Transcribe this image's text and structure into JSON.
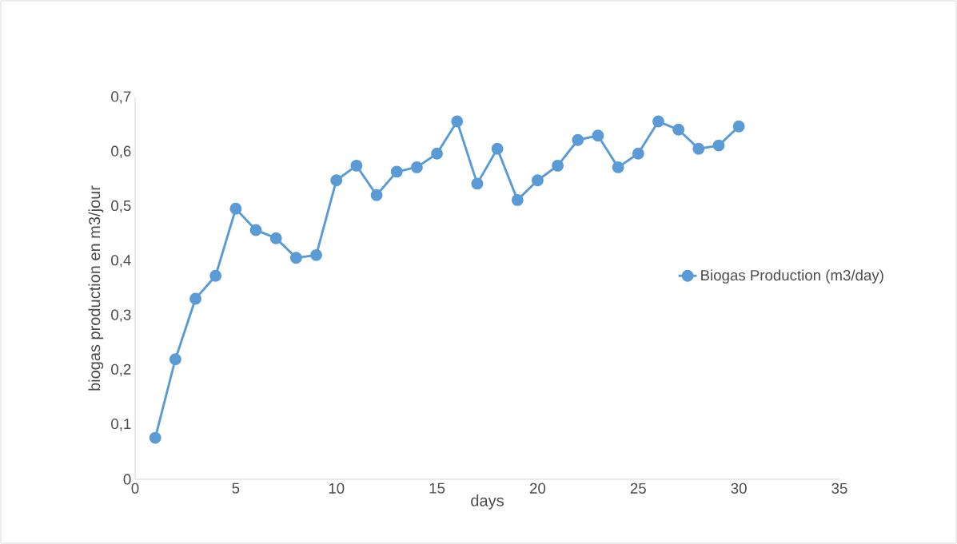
{
  "chart_data": {
    "type": "line",
    "xlabel": "days",
    "ylabel": "biogas production en m3/jour",
    "x": [
      1,
      2,
      3,
      4,
      5,
      6,
      7,
      8,
      9,
      10,
      11,
      12,
      13,
      14,
      15,
      16,
      17,
      18,
      19,
      20,
      21,
      22,
      23,
      24,
      25,
      26,
      27,
      28,
      29,
      30
    ],
    "series": [
      {
        "name": "Biogas Production (m3/day)",
        "color": "#5b9bd5",
        "values": [
          0.076,
          0.22,
          0.331,
          0.373,
          0.496,
          0.457,
          0.442,
          0.406,
          0.411,
          0.548,
          0.575,
          0.521,
          0.564,
          0.572,
          0.597,
          0.656,
          0.542,
          0.606,
          0.512,
          0.548,
          0.575,
          0.622,
          0.63,
          0.572,
          0.597,
          0.656,
          0.641,
          0.606,
          0.612,
          0.647
        ]
      }
    ],
    "xlim": [
      0,
      35
    ],
    "xticks": [
      0,
      5,
      10,
      15,
      20,
      25,
      30,
      35
    ],
    "ylim": [
      0,
      0.7
    ],
    "yticks": [
      0,
      {
        "value": 0.1,
        "label": "0,1"
      },
      {
        "value": 0.2,
        "label": "0,2"
      },
      {
        "value": 0.3,
        "label": "0,3"
      },
      {
        "value": 0.4,
        "label": "0,4"
      },
      {
        "value": 0.5,
        "label": "0,5"
      },
      {
        "value": 0.6,
        "label": "0,6"
      },
      {
        "value": 0.7,
        "label": "0,7"
      }
    ],
    "grid": false,
    "legend": "right",
    "marker": "circle",
    "line_style": "solid"
  }
}
